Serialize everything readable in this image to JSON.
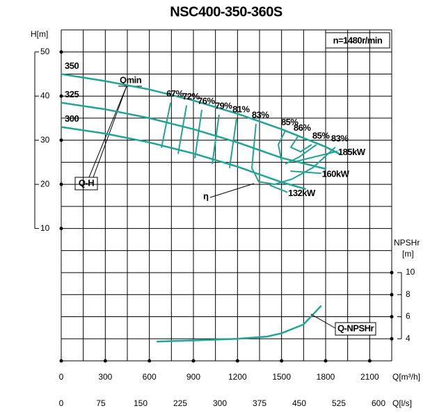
{
  "chart_data": {
    "type": "pump-curve",
    "title": "NSC400-350-360S",
    "speed_label": "n=1480r/min",
    "x_label": "Q[m³/h]",
    "x2_label": "Q[l/s]",
    "y_label": "H[m]",
    "y2_label": [
      "NPSHr",
      "[m]"
    ],
    "xlim": [
      0,
      2250
    ],
    "xticks": [
      0,
      300,
      600,
      900,
      1200,
      1500,
      1800,
      2100
    ],
    "x2lim": [
      0,
      625
    ],
    "x2ticks": [
      0,
      75,
      150,
      225,
      300,
      375,
      450,
      525,
      600
    ],
    "ylim": [
      -20,
      55
    ],
    "yticks": [
      10,
      20,
      30,
      40,
      50
    ],
    "y2lim": [
      2,
      32
    ],
    "y2ticks": [
      4,
      6,
      8,
      10
    ],
    "xgrid": [
      0,
      150,
      300,
      450,
      600,
      750,
      900,
      1050,
      1200,
      1350,
      1500,
      1650,
      1800,
      1950,
      2100,
      2250
    ],
    "ygrid": [
      -20,
      -15,
      -10,
      -5,
      0,
      5,
      10,
      15,
      20,
      25,
      30,
      35,
      40,
      45,
      50,
      55
    ],
    "color": "#1ea596",
    "series": [
      {
        "name": "350",
        "x": [
          0,
          300,
          600,
          900,
          1200,
          1500,
          1800,
          1900
        ],
        "values": [
          45,
          43.4,
          41.5,
          39,
          36,
          32.5,
          28.5,
          26.8
        ]
      },
      {
        "name": "325",
        "x": [
          0,
          300,
          600,
          900,
          1200,
          1500,
          1800
        ],
        "values": [
          38.5,
          37,
          35,
          32.5,
          29.5,
          26,
          23.5
        ]
      },
      {
        "name": "300",
        "x": [
          0,
          300,
          600,
          900,
          1200,
          1500,
          1666
        ],
        "values": [
          33,
          31.5,
          29.5,
          27,
          24,
          20.5,
          18.9
        ]
      },
      {
        "name": "Q-NPSHr",
        "axis": "y2",
        "x": [
          650,
          900,
          1200,
          1400,
          1500,
          1650,
          1770
        ],
        "values": [
          3.75,
          3.85,
          4.0,
          4.2,
          4.5,
          5.3,
          7.0
        ]
      }
    ],
    "efficiency_contours": [
      {
        "label": "67%",
        "x": [
          744,
          682
        ],
        "values": [
          38.5,
          28.3
        ]
      },
      {
        "label": "72%",
        "x": [
          853,
          796
        ],
        "values": [
          37.9,
          26.9
        ]
      },
      {
        "label": "76%",
        "x": [
          957,
          910
        ],
        "values": [
          36.9,
          25.9
        ]
      },
      {
        "label": "79%",
        "x": [
          1075,
          1028
        ],
        "values": [
          35.8,
          24.6
        ]
      },
      {
        "label": "81%",
        "x": [
          1194,
          1146
        ],
        "values": [
          35,
          23.7
        ]
      },
      {
        "label": "83%",
        "x": [
          1326,
          1298,
          1345,
          1454
        ],
        "values": [
          33.7,
          23.7,
          20.6,
          20.0
        ]
      },
      {
        "label": "85%",
        "x": [
          1525,
          1478,
          1501
        ],
        "values": [
          32.1,
          29,
          25.2
        ]
      },
      {
        "label": "86%",
        "x": [
          1610,
          1563,
          1629,
          1705
        ],
        "values": [
          30.8,
          28.4,
          27.4,
          29
        ]
      },
      {
        "label": "85%",
        "x": [
          1738,
          1620,
          1525
        ],
        "values": [
          29,
          26.2,
          24.6
        ]
      },
      {
        "label": "83%",
        "x": [
          1866,
          1714,
          1572,
          1454
        ],
        "values": [
          28.4,
          23.8,
          21.2,
          20.0
        ]
      }
    ],
    "power_lines": [
      {
        "label": "185kW",
        "x": [
          1600,
          1880
        ],
        "values": [
          25.2,
          27.5
        ]
      },
      {
        "label": "160kW",
        "x": [
          1560,
          1770
        ],
        "values": [
          23.0,
          22.5
        ]
      },
      {
        "label": "132kW",
        "x": [
          1420,
          1540
        ],
        "values": [
          19.8,
          18.2
        ]
      }
    ],
    "qmin_label": "Qmin",
    "qh_label": "Q-H",
    "eta_label": "η"
  }
}
